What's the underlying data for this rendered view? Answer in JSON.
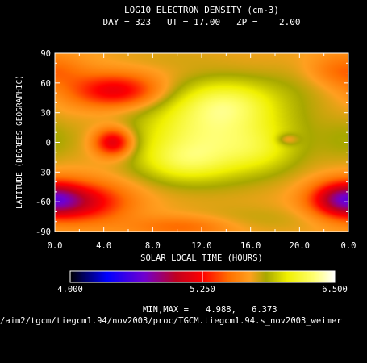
{
  "chart_data": {
    "type": "heatmap",
    "title_line1": "LOG10 ELECTRON DENSITY (cm-3)",
    "title_line2": "DAY = 323   UT = 17.00   ZP =    2.00",
    "xlabel": "SOLAR LOCAL TIME (HOURS)",
    "ylabel": "LATITUDE (DEGREES GEOGRAPHIC)",
    "x_ticks": [
      "0.0",
      "4.0",
      "8.0",
      "12.0",
      "16.0",
      "20.0",
      "0.0"
    ],
    "y_ticks": [
      "90",
      "60",
      "30",
      "0",
      "-30",
      "-60",
      "-90"
    ],
    "xlim": [
      0,
      24
    ],
    "ylim": [
      -90,
      90
    ],
    "colorbar": {
      "min_label": "4.000",
      "mid_label": "5.250",
      "max_label": "6.500",
      "range": [
        4.0,
        6.5
      ],
      "stops": [
        {
          "v": 4.0,
          "color": "#000000"
        },
        {
          "v": 4.35,
          "color": "#0000ff"
        },
        {
          "v": 4.7,
          "color": "#7000d0"
        },
        {
          "v": 5.0,
          "color": "#c00020"
        },
        {
          "v": 5.25,
          "color": "#ff0000"
        },
        {
          "v": 5.5,
          "color": "#ff7000"
        },
        {
          "v": 5.7,
          "color": "#ffa020"
        },
        {
          "v": 5.85,
          "color": "#a8a800"
        },
        {
          "v": 6.05,
          "color": "#f0f000"
        },
        {
          "v": 6.3,
          "color": "#ffff70"
        },
        {
          "v": 6.5,
          "color": "#ffffff"
        }
      ]
    },
    "minmax_label": "MIN,MAX =",
    "min_value": "4.988,",
    "max_value": "6.373",
    "file_path": "/aim2/tgcm/tiegcm1.94/nov2003/proc/TGCM.tiegcm1.94.s_nov2003_weimer",
    "grid": false,
    "field": {
      "base": 5.7,
      "features": [
        {
          "x": 13.0,
          "y": 8,
          "sx": 4.6,
          "sy": 30,
          "amp": 0.55
        },
        {
          "x": 14.0,
          "y": 42,
          "sx": 2.8,
          "sy": 16,
          "amp": 0.3
        },
        {
          "x": 10.5,
          "y": -20,
          "sx": 2.5,
          "sy": 14,
          "amp": 0.25
        },
        {
          "x": 16.8,
          "y": -10,
          "sx": 2.0,
          "sy": 14,
          "amp": 0.12
        },
        {
          "x": 19.0,
          "y": 3,
          "sx": 0.6,
          "sy": 4,
          "amp": -0.25
        },
        {
          "x": 0.0,
          "y": 2,
          "sx": 1.6,
          "sy": 16,
          "amp": 0.12
        },
        {
          "x": 20.5,
          "y": 62,
          "sx": 2.5,
          "sy": 18,
          "amp": 0.08
        },
        {
          "x": 5.0,
          "y": 52,
          "sx": 2.6,
          "sy": 12,
          "amp": -0.55
        },
        {
          "x": 4.8,
          "y": 0,
          "sx": 1.1,
          "sy": 10,
          "amp": -0.65
        },
        {
          "x": 1.8,
          "y": -60,
          "sx": 2.8,
          "sy": 14,
          "amp": -0.6
        },
        {
          "x": 23.5,
          "y": -57,
          "sx": 1.7,
          "sy": 12,
          "amp": -0.6
        },
        {
          "x": 23.5,
          "y": 72,
          "sx": 2.0,
          "sy": 12,
          "amp": -0.25
        },
        {
          "x": 10.5,
          "y": -85,
          "sx": 3.0,
          "sy": 8,
          "amp": -0.25
        },
        {
          "x": 16.0,
          "y": -78,
          "sx": 5.0,
          "sy": 10,
          "amp": 0.1
        },
        {
          "x": 9.0,
          "y": 85,
          "sx": 4.0,
          "sy": 8,
          "amp": 0.05
        }
      ]
    }
  }
}
